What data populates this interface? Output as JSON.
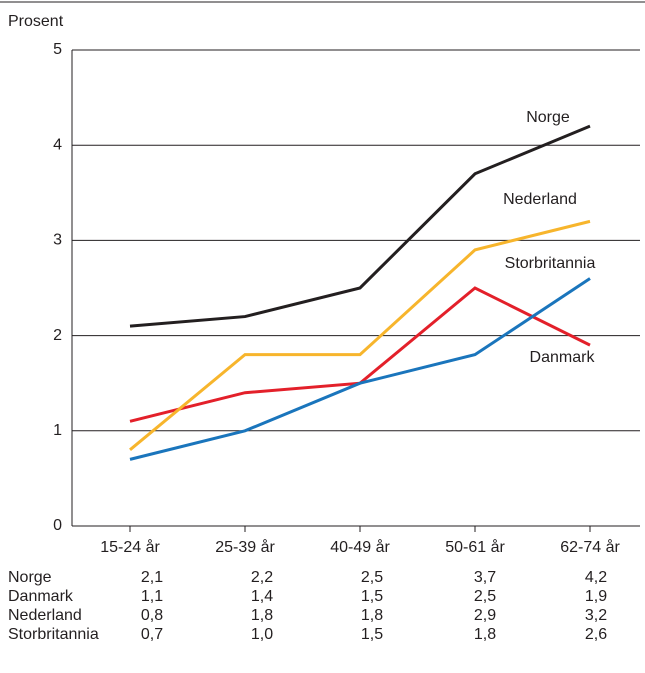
{
  "chart_data": {
    "type": "line",
    "y_label": "Prosent",
    "categories": [
      "15-24 år",
      "25-39 år",
      "40-49 år",
      "50-61 år",
      "62-74 år"
    ],
    "series": [
      {
        "name": "Norge",
        "color": "#231f20",
        "values": [
          2.1,
          2.2,
          2.5,
          3.7,
          4.2
        ],
        "value_labels": [
          "2,1",
          "2,2",
          "2,5",
          "3,7",
          "4,2"
        ]
      },
      {
        "name": "Danmark",
        "color": "#e3202a",
        "values": [
          1.1,
          1.4,
          1.5,
          2.5,
          1.9
        ],
        "value_labels": [
          "1,1",
          "1,4",
          "1,5",
          "2,5",
          "1,9"
        ]
      },
      {
        "name": "Nederland",
        "color": "#f7b52c",
        "values": [
          0.8,
          1.8,
          1.8,
          2.9,
          3.2
        ],
        "value_labels": [
          "0,8",
          "1,8",
          "1,8",
          "2,9",
          "3,2"
        ]
      },
      {
        "name": "Storbritannia",
        "color": "#1a75bc",
        "values": [
          0.7,
          1.0,
          1.5,
          1.8,
          2.6
        ],
        "value_labels": [
          "0,7",
          "1,0",
          "1,5",
          "1,8",
          "2,6"
        ]
      }
    ],
    "ylim": [
      0,
      5
    ],
    "yticks": [
      0,
      1,
      2,
      3,
      4,
      5
    ],
    "grid": true
  }
}
